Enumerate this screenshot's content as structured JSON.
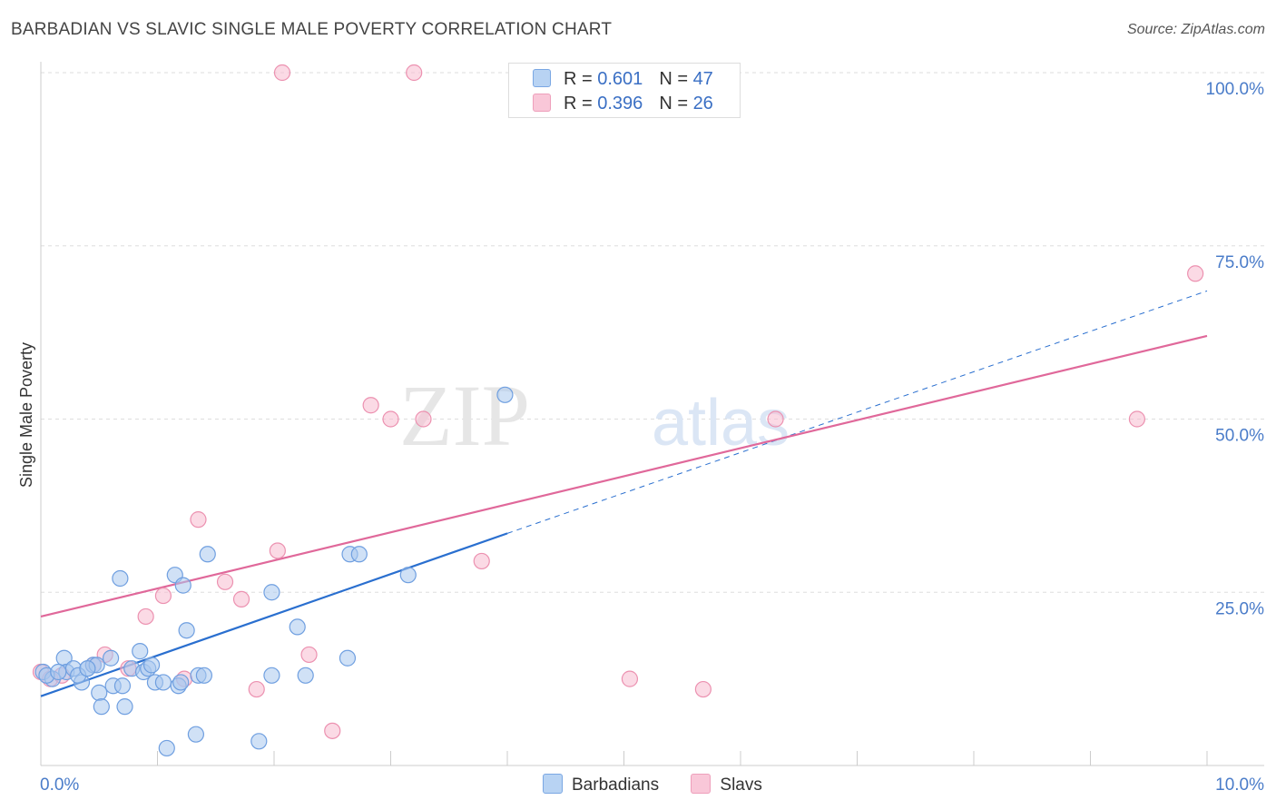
{
  "title": "BARBADIAN VS SLAVIC SINGLE MALE POVERTY CORRELATION CHART",
  "source": "Source: ZipAtlas.com",
  "watermark": {
    "zip": "ZIP",
    "atlas": "atlas"
  },
  "legend": {
    "barbadians": {
      "r_label": "R =",
      "r_value": "0.601",
      "n_label": "N =",
      "n_value": "47"
    },
    "slavs": {
      "r_label": "R =",
      "r_value": "0.396",
      "n_label": "N =",
      "n_value": "26"
    }
  },
  "bottom_legend": {
    "barbadians": "Barbadians",
    "slavs": "Slavs"
  },
  "colors": {
    "blue_fill": "#a9c8ef",
    "blue_stroke": "#6f9fe0",
    "blue_line": "#2a6fcf",
    "pink_fill": "#f7bcd0",
    "pink_stroke": "#ec91b0",
    "pink_line": "#e0689a",
    "grid": "#dddddd",
    "tick_text": "#4a7cc9"
  },
  "chart_data": {
    "type": "scatter",
    "title": "BARBADIAN VS SLAVIC SINGLE MALE POVERTY CORRELATION CHART",
    "xlabel": "",
    "ylabel": "Single Male Poverty",
    "xlim": [
      0,
      10
    ],
    "ylim": [
      0,
      105
    ],
    "x_tick_labels": [
      {
        "value": 0,
        "label": "0.0%"
      },
      {
        "value": 10,
        "label": "10.0%"
      }
    ],
    "y_tick_labels": [
      {
        "value": 25,
        "label": "25.0%"
      },
      {
        "value": 50,
        "label": "50.0%"
      },
      {
        "value": 75,
        "label": "75.0%"
      },
      {
        "value": 100,
        "label": "100.0%"
      }
    ],
    "series": [
      {
        "name": "Barbadians",
        "r": 0.601,
        "n": 47,
        "points": [
          [
            0.02,
            13.5
          ],
          [
            0.1,
            12.5
          ],
          [
            0.2,
            15.5
          ],
          [
            0.22,
            13.5
          ],
          [
            0.28,
            14
          ],
          [
            0.35,
            12
          ],
          [
            0.4,
            14
          ],
          [
            0.45,
            14.5
          ],
          [
            0.48,
            14.5
          ],
          [
            0.5,
            10.5
          ],
          [
            0.52,
            8.5
          ],
          [
            0.6,
            15.5
          ],
          [
            0.62,
            11.5
          ],
          [
            0.68,
            27
          ],
          [
            0.7,
            11.5
          ],
          [
            0.72,
            8.5
          ],
          [
            0.78,
            14
          ],
          [
            0.85,
            16.5
          ],
          [
            0.88,
            13.5
          ],
          [
            0.92,
            14
          ],
          [
            0.95,
            14.5
          ],
          [
            0.98,
            12
          ],
          [
            1.05,
            12
          ],
          [
            1.08,
            2.5
          ],
          [
            1.15,
            27.5
          ],
          [
            1.18,
            11.5
          ],
          [
            1.22,
            26
          ],
          [
            1.25,
            19.5
          ],
          [
            1.33,
            4.5
          ],
          [
            1.35,
            13
          ],
          [
            1.4,
            13
          ],
          [
            1.43,
            30.5
          ],
          [
            1.87,
            3.5
          ],
          [
            1.98,
            25
          ],
          [
            1.98,
            13
          ],
          [
            2.2,
            20
          ],
          [
            2.27,
            13
          ],
          [
            2.63,
            15.5
          ],
          [
            2.65,
            30.5
          ],
          [
            2.73,
            30.5
          ],
          [
            3.15,
            27.5
          ],
          [
            3.98,
            53.5
          ],
          [
            0.05,
            13
          ],
          [
            0.15,
            13.5
          ],
          [
            0.32,
            13
          ],
          [
            0.4,
            14
          ],
          [
            1.2,
            12
          ]
        ],
        "trend": {
          "x0": 0,
          "y0": 10,
          "x1": 4,
          "y1": 33.5,
          "dashed_to_x": 10,
          "dashed_to_y": 68.5
        }
      },
      {
        "name": "Slavs",
        "r": 0.396,
        "n": 26,
        "points": [
          [
            0.0,
            13.5
          ],
          [
            0.08,
            12.5
          ],
          [
            0.18,
            13
          ],
          [
            0.45,
            14.5
          ],
          [
            0.55,
            16
          ],
          [
            0.75,
            14
          ],
          [
            0.9,
            21.5
          ],
          [
            1.05,
            24.5
          ],
          [
            1.23,
            12.5
          ],
          [
            1.35,
            35.5
          ],
          [
            1.58,
            26.5
          ],
          [
            1.72,
            24
          ],
          [
            1.85,
            11
          ],
          [
            2.03,
            31
          ],
          [
            2.3,
            16
          ],
          [
            2.5,
            5
          ],
          [
            2.83,
            52
          ],
          [
            3.0,
            50
          ],
          [
            3.28,
            50
          ],
          [
            3.78,
            29.5
          ],
          [
            5.05,
            12.5
          ],
          [
            5.68,
            11
          ],
          [
            6.3,
            50
          ],
          [
            9.4,
            50
          ],
          [
            9.9,
            71
          ],
          [
            2.07,
            100
          ]
        ],
        "extra_points": [
          [
            3.2,
            100
          ]
        ],
        "trend": {
          "x0": 0,
          "y0": 21.5,
          "x1": 10,
          "y1": 62
        }
      }
    ]
  }
}
